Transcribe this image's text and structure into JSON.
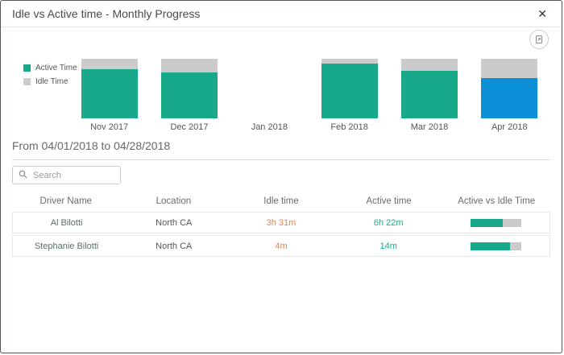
{
  "dialog": {
    "title": "Idle vs Active time - Monthly Progress",
    "close_glyph": "✕"
  },
  "chart_data": {
    "type": "bar",
    "stacked": true,
    "title": "Idle vs Active time - Monthly Progress",
    "categories": [
      "Nov 2017",
      "Dec 2017",
      "Jan 2018",
      "Feb 2018",
      "Mar 2018",
      "Apr 2018"
    ],
    "series": [
      {
        "name": "Active Time",
        "values": [
          82,
          77,
          0,
          92,
          80,
          68
        ]
      },
      {
        "name": "Idle Time",
        "values": [
          18,
          23,
          0,
          8,
          20,
          32
        ]
      }
    ],
    "unit": "percent of total time",
    "ylim": [
      0,
      100
    ],
    "legend_position": "left",
    "selected_category": "Apr 2018",
    "legend": [
      "Active Time",
      "Idle Time"
    ]
  },
  "colors": {
    "active": "#18a98b",
    "idle": "#cbcbcb",
    "selected_active": "#0b90d8",
    "idle_text": "#e8824b",
    "active_text": "#18a98b"
  },
  "filter": {
    "range_label": "From 04/01/2018 to 04/28/2018"
  },
  "search": {
    "placeholder": "Search",
    "value": ""
  },
  "table": {
    "columns": [
      "Driver Name",
      "Location",
      "Idle time",
      "Active time",
      "Active vs Idle Time"
    ],
    "rows": [
      {
        "driver": "Al Bilotti",
        "location": "North CA",
        "idle": "3h 31m",
        "active": "6h 22m",
        "active_ratio": 0.64
      },
      {
        "driver": "Stephanie Bilotti",
        "location": "North CA",
        "idle": "4m",
        "active": "14m",
        "active_ratio": 0.78
      }
    ]
  }
}
